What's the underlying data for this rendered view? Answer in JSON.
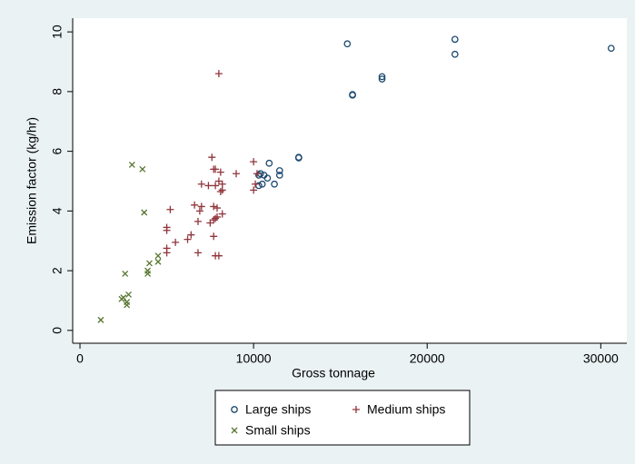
{
  "chart_data": {
    "type": "scatter",
    "x_label": "Gross tonnage",
    "y_label": "Emission factor (kg/hr)",
    "xlim": [
      -420,
      31500
    ],
    "ylim": [
      -0.43,
      10.46
    ],
    "xticks": [
      0,
      10000,
      20000,
      30000
    ],
    "yticks": [
      0,
      2,
      4,
      6,
      8,
      10
    ],
    "grid": false,
    "legend": "bottom",
    "series": [
      {
        "name": "Large ships",
        "color": "#1a476f",
        "marker": "circle",
        "x": [
          15400,
          21600,
          21600,
          30600,
          17400,
          17400,
          15700,
          15700,
          12600,
          12600,
          10900,
          10400,
          10600,
          10300,
          11500,
          11500,
          10800,
          10500,
          10300,
          11200
        ],
        "values": [
          9.6,
          9.75,
          9.25,
          9.45,
          8.5,
          8.42,
          7.9,
          7.88,
          5.8,
          5.78,
          5.6,
          5.25,
          5.2,
          5.2,
          5.35,
          5.2,
          5.1,
          4.9,
          4.85,
          4.9
        ]
      },
      {
        "name": "Medium ships",
        "color": "#90353b",
        "marker": "plus",
        "x": [
          8000,
          7600,
          7800,
          7700,
          9000,
          8100,
          10000,
          10200,
          10100,
          10000,
          8000,
          8200,
          7800,
          7400,
          7000,
          8100,
          8200,
          6600,
          7000,
          7700,
          7900,
          6900,
          8200,
          7900,
          7700,
          7500,
          7800,
          5200,
          6800,
          5000,
          5000,
          6400,
          6200,
          7700,
          5500,
          5000,
          5000,
          6800,
          7800,
          8000
        ],
        "values": [
          8.6,
          5.8,
          5.4,
          5.4,
          5.25,
          5.3,
          5.65,
          5.25,
          4.9,
          4.7,
          5.0,
          4.9,
          4.85,
          4.85,
          4.9,
          4.65,
          4.7,
          4.2,
          4.15,
          4.15,
          4.1,
          4.0,
          3.9,
          3.8,
          3.7,
          3.6,
          3.75,
          4.05,
          3.65,
          3.45,
          3.35,
          3.2,
          3.05,
          3.15,
          2.95,
          2.75,
          2.6,
          2.6,
          2.5,
          2.5
        ]
      },
      {
        "name": "Small ships",
        "color": "#55752f",
        "marker": "cross",
        "x": [
          3000,
          3600,
          3700,
          2600,
          4500,
          4000,
          4500,
          3900,
          3900,
          2500,
          2800,
          2400,
          2700,
          2700,
          1200
        ],
        "values": [
          5.55,
          5.4,
          3.95,
          1.9,
          2.5,
          2.25,
          2.3,
          2.0,
          1.9,
          1.1,
          1.2,
          1.05,
          0.95,
          0.85,
          0.35
        ]
      }
    ]
  }
}
